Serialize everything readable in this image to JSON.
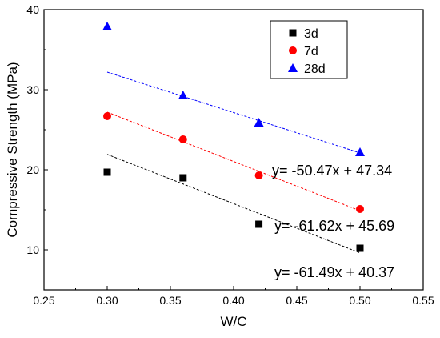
{
  "chart_data": {
    "type": "scatter",
    "title": "",
    "xlabel": "W/C",
    "ylabel": "Compressive Strength (MPa)",
    "xlim": [
      0.25,
      0.55
    ],
    "ylim": [
      5,
      40
    ],
    "x_ticks": [
      "0.25",
      "0.30",
      "0.35",
      "0.40",
      "0.45",
      "0.50",
      "0.55"
    ],
    "y_ticks": [
      "10",
      "20",
      "30",
      "40"
    ],
    "grid": false,
    "legend_position": "top-right",
    "x": [
      0.3,
      0.36,
      0.42,
      0.5
    ],
    "series": [
      {
        "name": "3d",
        "color": "#000000",
        "marker": "square",
        "values": [
          19.7,
          19.0,
          13.2,
          10.2
        ],
        "fit": {
          "slope": -61.49,
          "intercept": 40.37,
          "x_range": [
            0.3,
            0.5
          ],
          "equation": "y= -61.49x + 40.37"
        }
      },
      {
        "name": "7d",
        "color": "#ff0000",
        "marker": "circle",
        "values": [
          26.7,
          23.8,
          19.3,
          15.1
        ],
        "fit": {
          "slope": -61.62,
          "intercept": 45.69,
          "x_range": [
            0.3,
            0.5
          ],
          "equation": "y= -61.62x + 45.69"
        }
      },
      {
        "name": "28d",
        "color": "#0000ff",
        "marker": "triangle",
        "values": [
          37.9,
          29.3,
          25.9,
          22.2
        ],
        "fit": {
          "slope": -50.47,
          "intercept": 47.34,
          "x_range": [
            0.3,
            0.5
          ],
          "equation": "y= -50.47x + 47.34"
        }
      }
    ]
  }
}
